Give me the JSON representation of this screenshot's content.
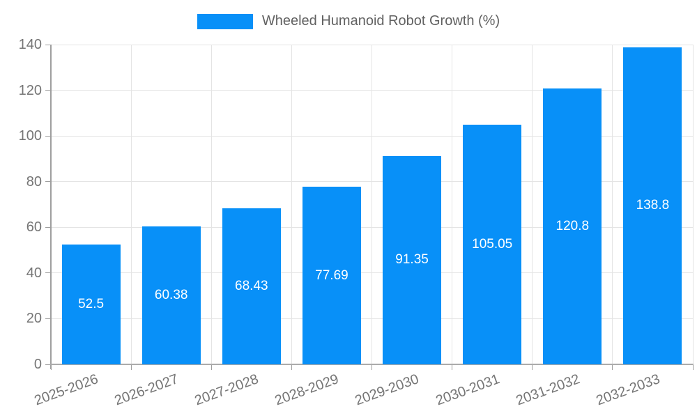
{
  "legend": {
    "label": "Wheeled Humanoid Robot Growth (%)"
  },
  "chart_data": {
    "type": "bar",
    "title": "Wheeled Humanoid Robot Growth (%)",
    "categories": [
      "2025-2026",
      "2026-2027",
      "2027-2028",
      "2028-2029",
      "2029-2030",
      "2030-2031",
      "2031-2032",
      "2032-2033"
    ],
    "values": [
      52.5,
      60.38,
      68.43,
      77.69,
      91.35,
      105.05,
      120.8,
      138.8
    ],
    "value_labels": [
      "52.5",
      "60.38",
      "68.43",
      "77.69",
      "91.35",
      "105.05",
      "120.8",
      "138.8"
    ],
    "xlabel": "",
    "ylabel": "",
    "ylim": [
      0,
      140
    ],
    "yticks": [
      0,
      20,
      40,
      60,
      80,
      100,
      120,
      140
    ],
    "grid": true,
    "legend_position": "top",
    "bar_color": "#0890f8",
    "value_label_color": "#ffffff",
    "axis_text_color": "#757575"
  }
}
